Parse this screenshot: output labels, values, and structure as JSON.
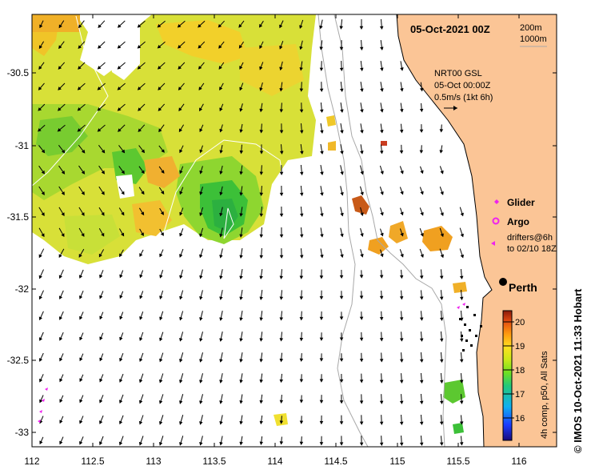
{
  "title": "05-Oct-2021 00Z",
  "contours": [
    "200m",
    "1000m"
  ],
  "current_info": {
    "line1": "NRT00 GSL",
    "line2": "05-Oct 00:00Z",
    "line3": "0.5m/s (1kt 6h)"
  },
  "legend": {
    "glider": "Glider",
    "argo": "Argo",
    "drifters_line1": "drifters@6h",
    "drifters_line2": "to 02/10 18Z"
  },
  "city": "Perth",
  "colorbar": {
    "label": "4h comp, p50, All Sats",
    "ticks": [
      "16",
      "17",
      "18",
      "19",
      "20"
    ],
    "min": 15.2,
    "max": 20.6
  },
  "side_credit": "© IMOS 10-Oct-2021 11:33 Hobart",
  "x_ticks": [
    "112",
    "112.5",
    "113",
    "113.5",
    "114",
    "114.5",
    "115",
    "115.5",
    "116"
  ],
  "y_ticks": [
    "-30.5",
    "-31",
    "-31.5",
    "-32",
    "-32.5",
    "-33"
  ],
  "colors": {
    "land": "#fbc596",
    "marker": "#ee22ee",
    "contour": "#a8a8a8"
  }
}
